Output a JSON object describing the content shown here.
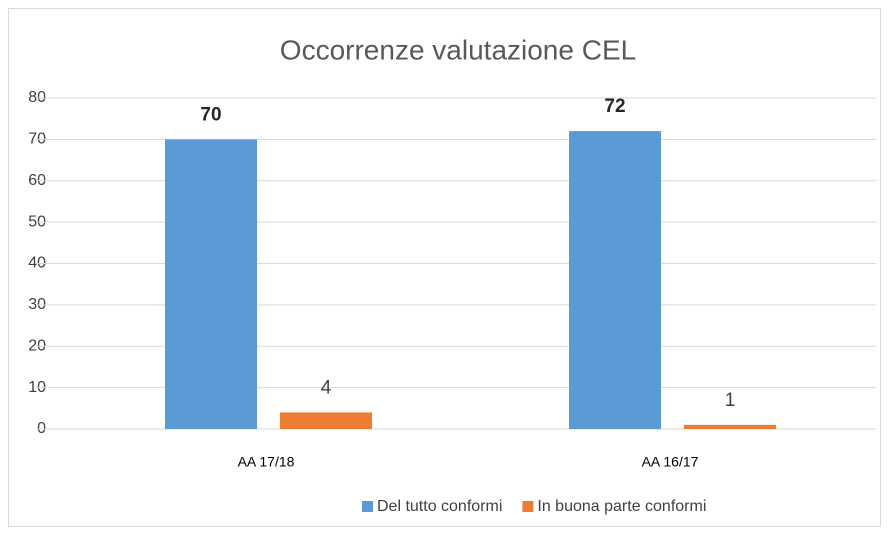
{
  "chart_data": {
    "type": "bar",
    "title": "Occorrenze valutazione CEL",
    "categories": [
      "AA 17/18",
      "AA 16/17"
    ],
    "series": [
      {
        "name": "Del tutto conformi",
        "color": "#5b9bd5",
        "values": [
          70,
          72
        ]
      },
      {
        "name": "In buona parte conformi",
        "color": "#ed7d31",
        "values": [
          4,
          1
        ]
      }
    ],
    "ylim": [
      0,
      80
    ],
    "yticks": [
      0,
      10,
      20,
      30,
      40,
      50,
      60,
      70,
      80
    ],
    "grid": true,
    "legend": "bottom"
  }
}
